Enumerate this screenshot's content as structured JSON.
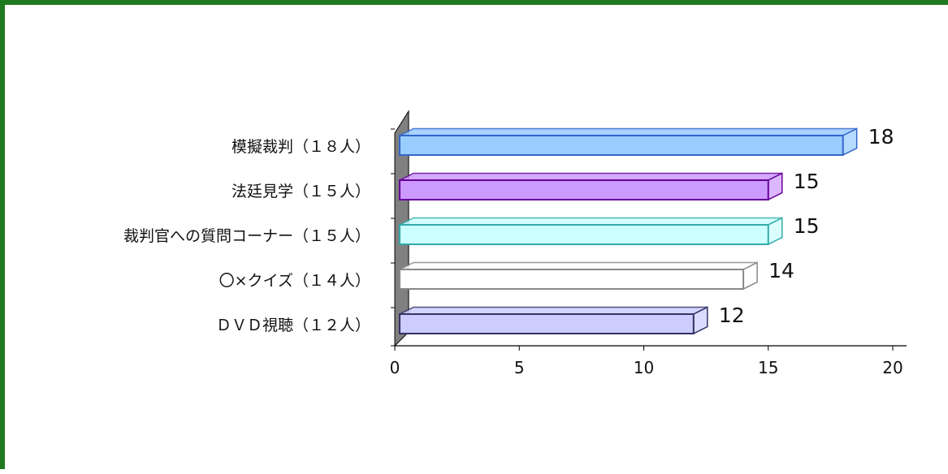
{
  "chart_data": {
    "type": "bar",
    "orientation": "horizontal",
    "style": "3d",
    "categories": [
      "模擬裁判（１８人）",
      "法廷見学（１５人）",
      "裁判官への質問コーナー（１５人）",
      "〇×クイズ（１４人）",
      "ＤＶＤ視聴（１２人）"
    ],
    "values": [
      18,
      15,
      15,
      14,
      12
    ],
    "value_labels": [
      "18",
      "15",
      "15",
      "14",
      "12"
    ],
    "colors": [
      "#99ccff",
      "#cc99ff",
      "#ccffff",
      "#ffffff",
      "#ccccff"
    ],
    "edge_colors": [
      "#3366cc",
      "#660099",
      "#33aaaa",
      "#888888",
      "#333366"
    ],
    "xlim": [
      0,
      20
    ],
    "x_ticks": [
      "0",
      "5",
      "10",
      "15",
      "20"
    ],
    "title": "",
    "xlabel": "",
    "ylabel": "",
    "grid": false,
    "legend": "none"
  },
  "frame_color": "#1f7a1f"
}
